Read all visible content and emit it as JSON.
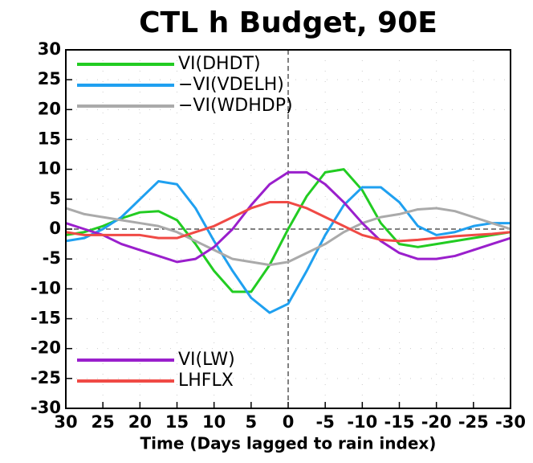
{
  "chart_data": {
    "type": "line",
    "title": "CTL h Budget, 90E",
    "x_label": "Time (Days lagged to rain index)",
    "x": [
      30,
      27.5,
      25,
      22.5,
      20,
      17.5,
      15,
      12.5,
      10,
      7.5,
      5,
      2.5,
      0,
      -2.5,
      -5,
      -7.5,
      -10,
      -12.5,
      -15,
      -17.5,
      -20,
      -22.5,
      -25,
      -27.5,
      -30
    ],
    "series": [
      {
        "name": "VI(DHDT)",
        "color": "#22cc22",
        "values": [
          -1,
          -0.5,
          0.5,
          1.8,
          2.8,
          3,
          1.5,
          -2.5,
          -7,
          -10.5,
          -10.5,
          -6,
          0,
          5.5,
          9.5,
          10,
          6.5,
          1,
          -2.5,
          -3,
          -2.5,
          -2,
          -1.5,
          -1,
          -0.5
        ]
      },
      {
        "name": "−VI(VDELH)",
        "color": "#1fa0f0",
        "values": [
          -2,
          -1.5,
          0,
          2,
          5,
          8,
          7.5,
          3.5,
          -2,
          -7,
          -11.5,
          -14,
          -12.5,
          -7,
          -1,
          4,
          7,
          7,
          4.5,
          0.5,
          -1,
          -0.5,
          0.5,
          1,
          1
        ]
      },
      {
        "name": "−VI(WDHDP)",
        "color": "#aaaaaa",
        "values": [
          3.5,
          2.5,
          2,
          1.5,
          1,
          0.5,
          -0.5,
          -2,
          -3.5,
          -5,
          -5.5,
          -6,
          -5.5,
          -4,
          -2.5,
          -0.5,
          1,
          2,
          2.5,
          3.3,
          3.5,
          3,
          2,
          1,
          0
        ]
      },
      {
        "name": "VI(LW)",
        "color": "#9a1fcc",
        "values": [
          1,
          0,
          -1,
          -2.5,
          -3.5,
          -4.5,
          -5.5,
          -5,
          -3,
          0,
          4,
          7.5,
          9.5,
          9.5,
          7.5,
          4.5,
          1,
          -2,
          -4,
          -5,
          -5,
          -4.5,
          -3.5,
          -2.5,
          -1.5
        ]
      },
      {
        "name": "LHFLX",
        "color": "#f04a45",
        "values": [
          -0.5,
          -1,
          -1,
          -1,
          -1,
          -1.5,
          -1.5,
          -0.5,
          0.5,
          2,
          3.5,
          4.5,
          4.5,
          3.5,
          2,
          0.5,
          -1,
          -1.8,
          -2,
          -1.8,
          -1.5,
          -1.2,
          -1,
          -0.8,
          -0.5
        ]
      }
    ],
    "xlim": [
      30,
      -30
    ],
    "xticks": [
      30,
      25,
      20,
      15,
      10,
      5,
      0,
      -5,
      -10,
      -15,
      -20,
      -25,
      -30
    ],
    "ylim": [
      -30,
      30
    ],
    "yticks": [
      -30,
      -25,
      -20,
      -15,
      -10,
      -5,
      0,
      5,
      10,
      15,
      20,
      25,
      30
    ],
    "grid": true
  }
}
